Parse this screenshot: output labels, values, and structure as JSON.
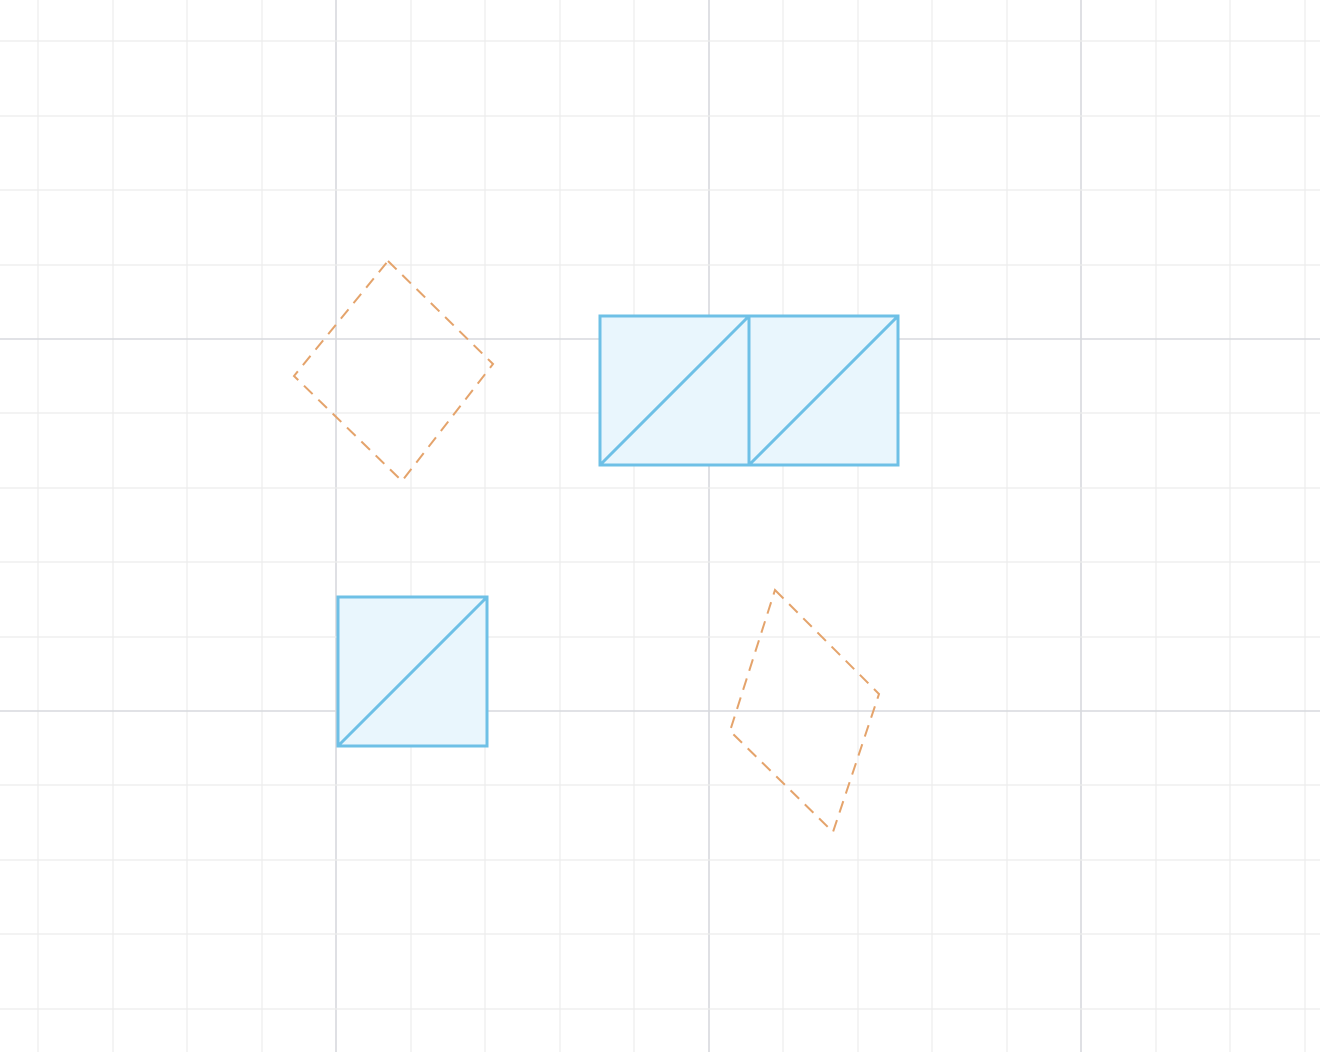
{
  "canvas": {
    "background": "#ffffff",
    "grid": {
      "minor_color": "#ececec",
      "major_color": "#d7d9dd"
    }
  },
  "styles": {
    "piece_stroke": "#6ec0e6",
    "piece_fill": "#e9f6fd",
    "outline_stroke": "#e4a36b"
  },
  "shapes": {
    "top_left_target": {
      "kind": "dashed-outline",
      "sides": 4,
      "label": ""
    },
    "top_right_pieces": {
      "kind": "two-squares-each-split-by-diagonal",
      "label": ""
    },
    "bottom_left_piece": {
      "kind": "square-split-by-diagonal",
      "label": ""
    },
    "bottom_right_target": {
      "kind": "dashed-outline",
      "sides": 4,
      "label": ""
    }
  }
}
